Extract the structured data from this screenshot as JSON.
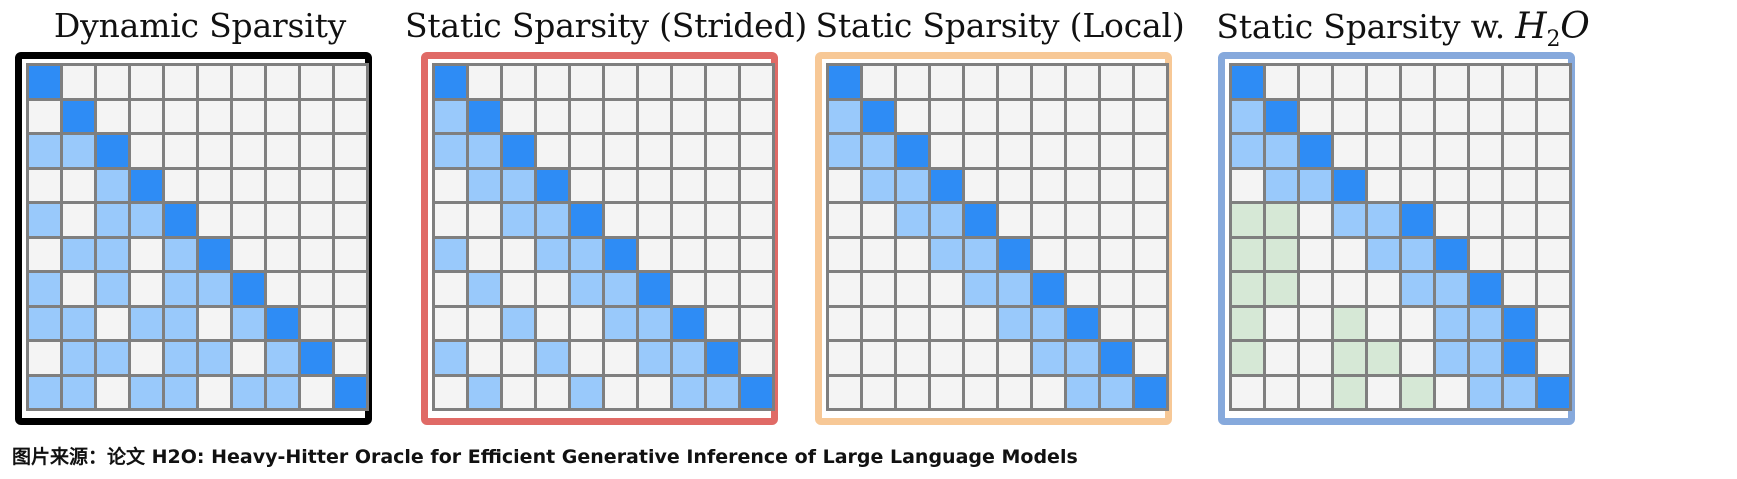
{
  "panels": [
    {
      "title": "Dynamic Sparsity",
      "border_color": "#000000",
      "grid": [
        "D.........",
        ".D........",
        "LLD.......",
        "..LD......",
        "L.LLD.....",
        ".LL.LD....",
        "L.L.LLD...",
        "LL.LL.LD..",
        ".LL.LL.LD.",
        "LL.LL.LL.D"
      ]
    },
    {
      "title": "Static Sparsity (Strided)",
      "border_color": "#e06a66",
      "grid": [
        "D.........",
        "LD........",
        "LLD.......",
        ".LLD......",
        "..LLD.....",
        "L..LLD....",
        ".L..LLD...",
        "..L..LLD..",
        "L..L..LLD.",
        ".L..L..LLD"
      ]
    },
    {
      "title": "Static Sparsity (Local)",
      "border_color": "#f7c896",
      "grid": [
        "D.........",
        "LD........",
        "LLD.......",
        ".LLD......",
        "..LLD.....",
        "...LLD....",
        "....LLD...",
        ".....LLD..",
        "......LLD.",
        ".......LLD"
      ]
    },
    {
      "title_prefix": "Static Sparsity w. ",
      "title_math": "H",
      "title_sub": "2",
      "title_math_end": "O",
      "border_color": "#86a9dc",
      "grid": [
        "D.........",
        "LD........",
        "LLD.......",
        ".LLD......",
        "GG.LLD....",
        "GG..LLD...",
        "GG...LLD..",
        "G..G..LLD.",
        "G..GG.LLD.",
        "...G.G.LLD"
      ]
    }
  ],
  "caption": "图片来源：论文 H2O: Heavy-Hitter Oracle for Efficient Generative Inference of Large Language Models",
  "colors": {
    "diagonal": "#2e8cf5",
    "light_blue": "#99c9fb",
    "green": "#d6e8d6",
    "empty": "#f4f4f4",
    "grid_line": "#7f7f7f"
  }
}
